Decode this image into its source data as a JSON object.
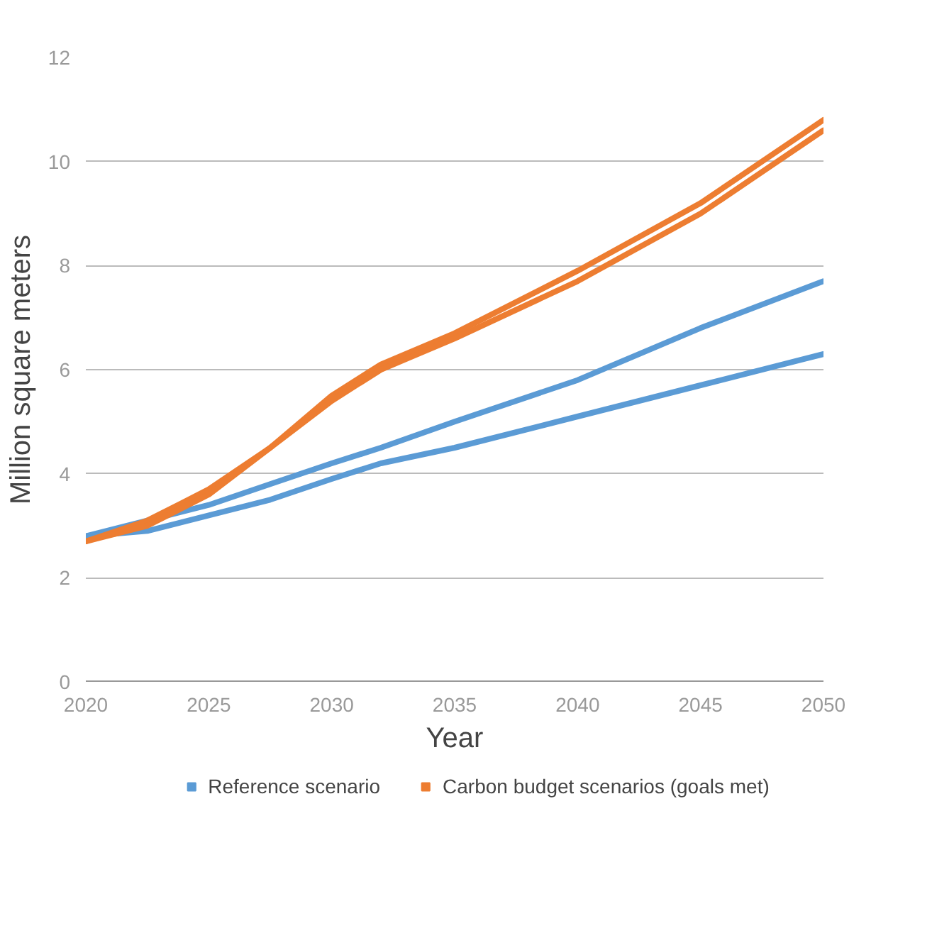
{
  "chart_data": {
    "type": "line",
    "xlabel": "Year",
    "ylabel": "Million square meters",
    "x": [
      2020,
      2022.5,
      2025,
      2027.5,
      2030,
      2032,
      2035,
      2040,
      2045,
      2050
    ],
    "xlim": [
      2020,
      2050
    ],
    "xticks": [
      2020,
      2025,
      2030,
      2035,
      2040,
      2045,
      2050
    ],
    "ylim": [
      0,
      12
    ],
    "yticks": [
      0,
      2,
      4,
      6,
      8,
      10,
      12
    ],
    "grid": "y",
    "legend": "bottom",
    "line_style": "solid",
    "series": [
      {
        "name": "Reference scenario",
        "color": "#5b9bd5",
        "values": [
          2.8,
          3.1,
          3.4,
          3.8,
          4.2,
          4.5,
          5.0,
          5.8,
          6.8,
          7.7
        ]
      },
      {
        "color": "#5b9bd5",
        "values": [
          2.8,
          2.9,
          3.2,
          3.5,
          3.9,
          4.2,
          4.5,
          5.1,
          5.7,
          6.3
        ]
      },
      {
        "name": "Carbon budget scenarios (goals met)",
        "color": "#ed7d31",
        "values": [
          2.7,
          3.1,
          3.7,
          4.5,
          5.5,
          6.1,
          6.7,
          7.9,
          9.2,
          10.8
        ]
      },
      {
        "color": "#ed7d31",
        "values": [
          2.7,
          3.0,
          3.6,
          4.5,
          5.4,
          6.0,
          6.6,
          7.7,
          9.0,
          10.6
        ]
      }
    ]
  }
}
